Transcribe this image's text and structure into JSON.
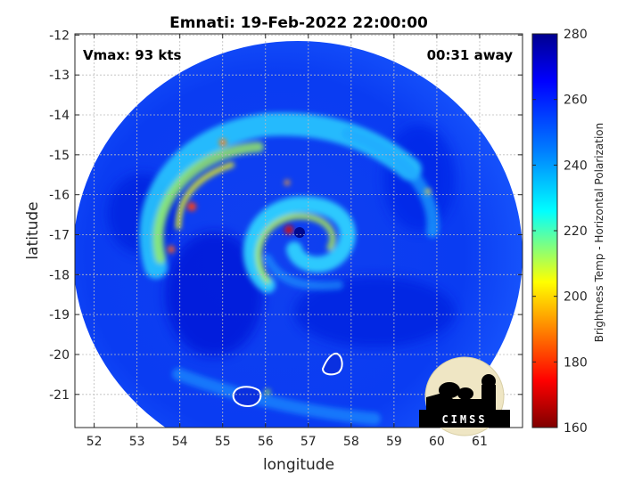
{
  "title": "Emnati: 19-Feb-2022 22:00:00",
  "vmax_label": "Vmax: 93 kts",
  "time_label": "00:31 away",
  "x_axis": {
    "label": "longitude",
    "ticks": [
      "52",
      "53",
      "54",
      "55",
      "56",
      "57",
      "58",
      "59",
      "60",
      "61"
    ]
  },
  "y_axis": {
    "label": "latitude",
    "ticks": [
      "-12",
      "-13",
      "-14",
      "-15",
      "-16",
      "-17",
      "-18",
      "-19",
      "-20",
      "-21"
    ]
  },
  "colorbar": {
    "label": "Brightness Temp - Horizontal Polarization",
    "ticks": [
      "280",
      "260",
      "240",
      "220",
      "200",
      "180",
      "160"
    ],
    "range": [
      160,
      280
    ],
    "colormap": "jet-reversed",
    "colors": [
      "#7f0000",
      "#ff0000",
      "#ffff00",
      "#00ffff",
      "#0080ff",
      "#0000ff",
      "#00008f"
    ]
  },
  "logo": {
    "text": "CIMSS",
    "icon": "cimss-logo-icon"
  },
  "storm": {
    "name": "Emnati",
    "center_lon": 56.5,
    "center_lat": -17.0
  }
}
